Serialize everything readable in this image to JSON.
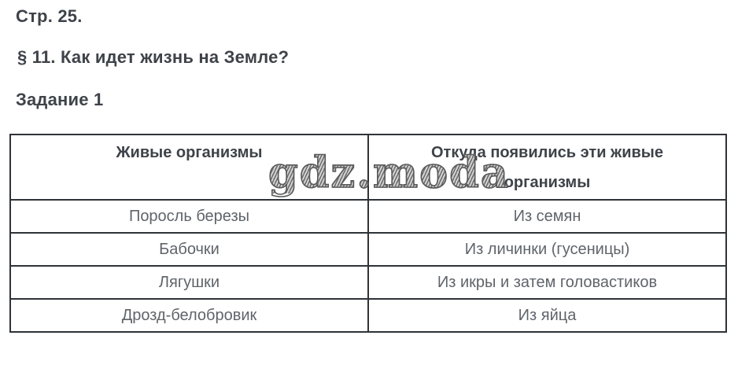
{
  "page": {
    "page_label": "Стр. 25.",
    "section_title": "§ 11. Как идет жизнь на Земле?",
    "task_title": "Задание 1"
  },
  "table": {
    "headers": {
      "organisms": "Живые организмы",
      "origin": "Откуда появились эти живые организмы"
    },
    "rows": [
      {
        "organism": "Поросль березы",
        "origin": "Из семян"
      },
      {
        "organism": "Бабочки",
        "origin": "Из личинки (гусеницы)"
      },
      {
        "organism": "Лягушки",
        "origin": "Из икры и затем головастиков"
      },
      {
        "organism": "Дрозд-белобровик",
        "origin": "Из яйца"
      }
    ]
  },
  "watermark": {
    "text": "gdz.moda"
  },
  "colors": {
    "heading_text": "#3e4349",
    "body_text": "#5f646a",
    "table_border": "#2e3338",
    "watermark_gray": "#6b6b6b",
    "background": "#ffffff"
  }
}
